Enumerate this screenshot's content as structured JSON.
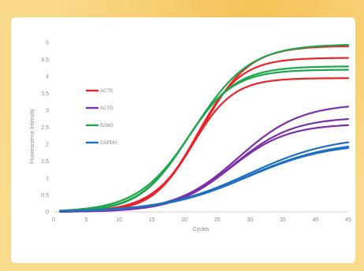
{
  "chart_data": {
    "type": "line",
    "title": "",
    "xlabel": "Cycles",
    "ylabel": "Fluorescence Intensity",
    "xlim": [
      0,
      45
    ],
    "ylim": [
      0,
      5
    ],
    "x_ticks": [
      "0",
      "5",
      "10",
      "15",
      "20",
      "25",
      "30",
      "35",
      "40",
      "45"
    ],
    "y_ticks": [
      "0",
      "0.5",
      "1",
      "1.5",
      "2",
      "2.5",
      "3",
      "3.5",
      "4",
      "4.5",
      "5"
    ],
    "grid": false,
    "legend_position": "left",
    "series": [
      {
        "name": "ACTB",
        "color": "#e8232a",
        "curves": [
          {
            "L": 4.9,
            "x0": 22.6,
            "k": 0.275
          },
          {
            "L": 4.55,
            "x0": 21.9,
            "k": 0.3
          },
          {
            "L": 3.95,
            "x0": 21.2,
            "k": 0.32
          }
        ]
      },
      {
        "name": "ACTG",
        "color": "#7b2fa8",
        "curves": [
          {
            "L": 3.2,
            "x0": 28.2,
            "k": 0.21
          },
          {
            "L": 2.8,
            "x0": 27.5,
            "k": 0.22
          },
          {
            "L": 2.6,
            "x0": 27.0,
            "k": 0.23
          }
        ]
      },
      {
        "name": "B2MG",
        "color": "#1fa54b",
        "curves": [
          {
            "L": 4.95,
            "x0": 21.5,
            "k": 0.235
          },
          {
            "L": 4.3,
            "x0": 20.4,
            "k": 0.27
          },
          {
            "L": 4.2,
            "x0": 20.2,
            "k": 0.28
          }
        ]
      },
      {
        "name": "GAPDH",
        "color": "#1f70c1",
        "curves": [
          {
            "L": 2.25,
            "x0": 29.8,
            "k": 0.155
          },
          {
            "L": 2.1,
            "x0": 29.6,
            "k": 0.157
          },
          {
            "L": 2.05,
            "x0": 29.5,
            "k": 0.158
          }
        ]
      }
    ]
  }
}
